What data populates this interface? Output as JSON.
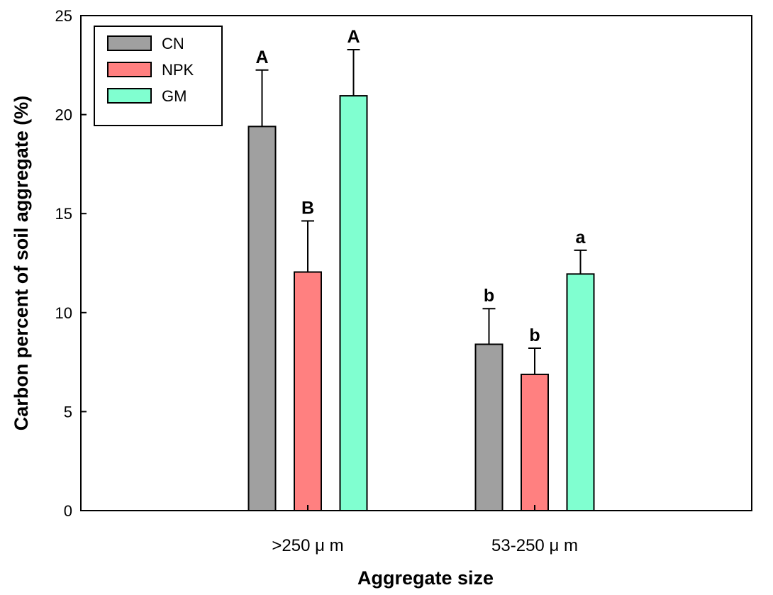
{
  "chart_data": {
    "type": "bar",
    "title": "",
    "xlabel": "Aggregate size",
    "ylabel": "Carbon percent of soil aggregate (%)",
    "ylim": [
      0,
      25
    ],
    "yticks": [
      0,
      5,
      10,
      15,
      20,
      25
    ],
    "ytick_labels": [
      "0",
      "5",
      "10",
      "15",
      "20",
      "25"
    ],
    "grid": false,
    "legend_position": "top-left",
    "categories": [
      ">250 μ m",
      "53-250 μ m"
    ],
    "series": [
      {
        "name": "CN",
        "color": "#a0a0a0",
        "values": [
          19.4,
          8.4
        ],
        "errors": [
          2.85,
          1.8
        ],
        "labels": [
          "A",
          "b"
        ]
      },
      {
        "name": "NPK",
        "color": "#ff8080",
        "values": [
          12.05,
          6.88
        ],
        "errors": [
          2.58,
          1.32
        ],
        "labels": [
          "B",
          "b"
        ]
      },
      {
        "name": "GM",
        "color": "#80ffd0",
        "values": [
          20.95,
          11.95
        ],
        "errors": [
          2.33,
          1.2
        ],
        "labels": [
          "A",
          "a"
        ]
      }
    ]
  }
}
